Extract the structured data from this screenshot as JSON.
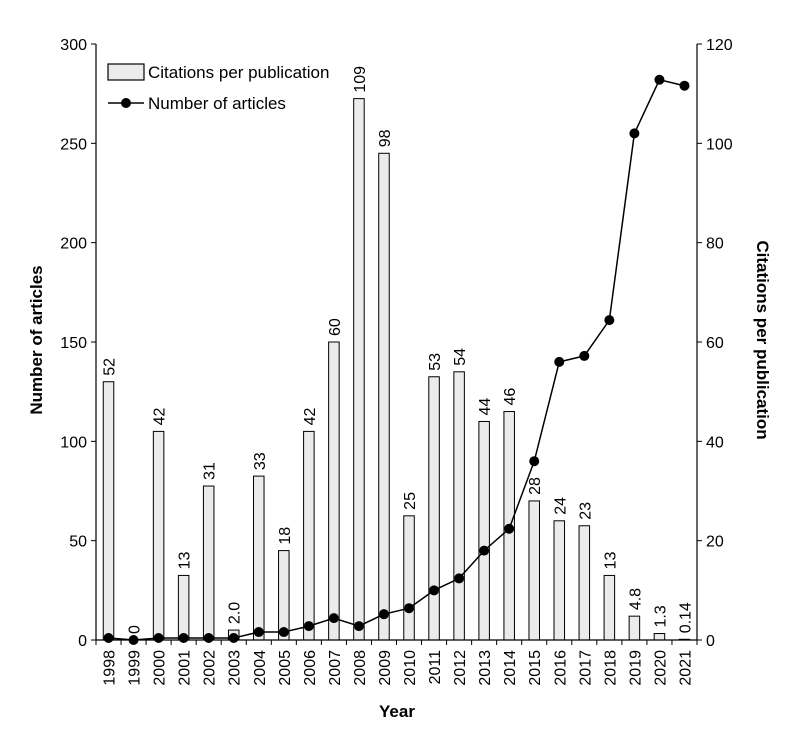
{
  "chart_data": {
    "type": "bar+line",
    "categories": [
      "1998",
      "1999",
      "2000",
      "2001",
      "2002",
      "2003",
      "2004",
      "2005",
      "2006",
      "2007",
      "2008",
      "2009",
      "2010",
      "2011",
      "2012",
      "2013",
      "2014",
      "2015",
      "2016",
      "2017",
      "2018",
      "2019",
      "2020",
      "2021"
    ],
    "series": [
      {
        "name": "Citations per publication",
        "type": "bar",
        "axis": "right",
        "values": [
          52,
          0,
          42,
          13,
          31,
          2.0,
          33,
          18,
          42,
          60,
          109,
          98,
          25,
          53,
          54,
          44,
          46,
          28,
          24,
          23,
          13,
          4.8,
          1.3,
          0.14
        ],
        "labels": [
          "52",
          "0",
          "42",
          "13",
          "31",
          "2.0",
          "33",
          "18",
          "42",
          "60",
          "109",
          "98",
          "25",
          "53",
          "54",
          "44",
          "46",
          "28",
          "24",
          "23",
          "13",
          "4.8",
          "1.3",
          "0.14"
        ]
      },
      {
        "name": "Number of articles",
        "type": "line",
        "axis": "left",
        "values": [
          1,
          0,
          1,
          1,
          1,
          1,
          4,
          4,
          7,
          11,
          7,
          13,
          16,
          25,
          31,
          45,
          56,
          90,
          140,
          143,
          161,
          255,
          282,
          279
        ]
      }
    ],
    "xlabel": "Year",
    "ylabel_left": "Number of articles",
    "ylabel_right": "Citations per publication",
    "ylim_left": [
      0,
      300
    ],
    "ylim_right": [
      0,
      120
    ],
    "yticks_left": [
      "0",
      "50",
      "100",
      "150",
      "200",
      "250",
      "300"
    ],
    "yticks_right": [
      "0",
      "20",
      "40",
      "60",
      "80",
      "100",
      "120"
    ],
    "grid": false,
    "legend_position": "top-left",
    "colors": {
      "bar_fill": "#ebebeb",
      "bar_stroke": "#000000",
      "line": "#000000"
    }
  }
}
